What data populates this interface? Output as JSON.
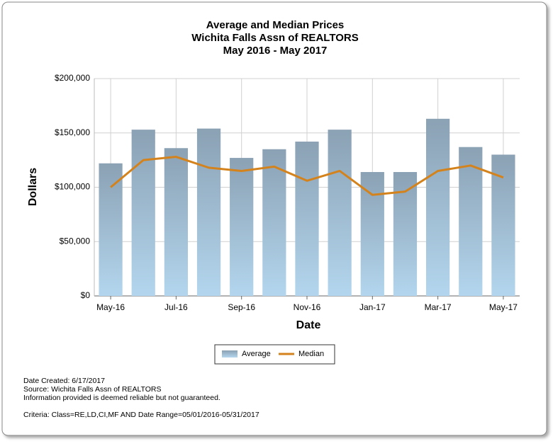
{
  "chart_data": {
    "type": "bar",
    "title": "Average and Median Prices",
    "subtitle": "Wichita Falls Assn of REALTORS",
    "period": "May 2016 - May 2017",
    "y_label": "Dollars",
    "x_label": "Date",
    "categories": [
      "May-16",
      null,
      "Jul-16",
      null,
      "Sep-16",
      null,
      "Nov-16",
      null,
      "Jan-17",
      null,
      "Mar-17",
      null,
      "May-17"
    ],
    "series": [
      {
        "name": "Average",
        "type": "bar",
        "color": "#8ba1b4",
        "values": [
          122000,
          153000,
          136000,
          154000,
          127000,
          135000,
          142000,
          153000,
          114000,
          114000,
          163000,
          137000,
          130000
        ]
      },
      {
        "name": "Median",
        "type": "line",
        "color": "#d4831c",
        "values": [
          100000,
          125000,
          128000,
          118000,
          115000,
          119000,
          106000,
          115000,
          93000,
          96000,
          115000,
          120000,
          109000
        ]
      }
    ],
    "ylim": [
      0,
      200000
    ],
    "yticks": [
      {
        "value": 0,
        "label": "$0"
      },
      {
        "value": 50000,
        "label": "$50,000"
      },
      {
        "value": 100000,
        "label": "$100,000"
      },
      {
        "value": 150000,
        "label": "$150,000"
      },
      {
        "value": 200000,
        "label": "$200,000"
      }
    ],
    "grid": true,
    "footnotes": [
      "Date Created: 6/17/2017",
      "Source: Wichita Falls Assn of REALTORS",
      "Information provided is deemed reliable but not guaranteed."
    ],
    "criteria": "Criteria: Class=RE,LD,CI,MF AND Date Range=05/01/2016-05/31/2017"
  }
}
